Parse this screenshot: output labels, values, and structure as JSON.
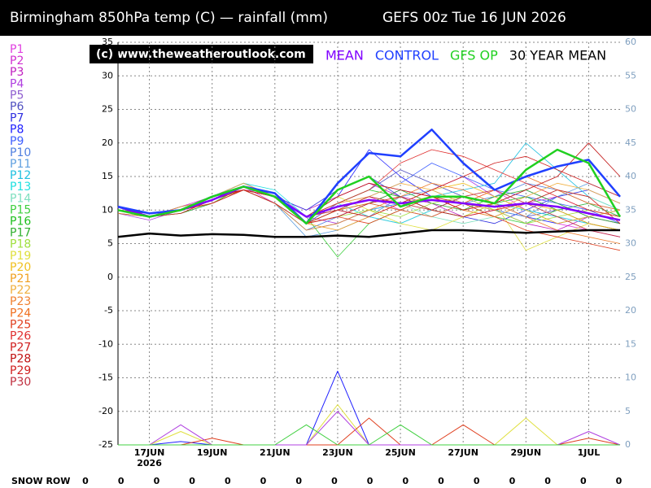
{
  "chart_data": {
    "type": "line",
    "title": "Birmingham 850hPa temp (C) — rainfall (mm)",
    "run": "GEFS 00z Tue 16 JUN 2026",
    "copyright": "(c) www.theweatheroutlook.com",
    "x": [
      0,
      1,
      2,
      3,
      4,
      5,
      6,
      7,
      8,
      9,
      10,
      11,
      12,
      13,
      14,
      15,
      16
    ],
    "xlim": [
      0,
      16
    ],
    "xticks": [
      {
        "value": 1,
        "label": "17JUN"
      },
      {
        "value": 3,
        "label": "19JUN"
      },
      {
        "value": 5,
        "label": "21JUN"
      },
      {
        "value": 7,
        "label": "23JUN"
      },
      {
        "value": 9,
        "label": "25JUN"
      },
      {
        "value": 11,
        "label": "27JUN"
      },
      {
        "value": 13,
        "label": "29JUN"
      },
      {
        "value": 15,
        "label": "1JUL"
      }
    ],
    "xtick_year": "2026",
    "ylim": [
      -25,
      35
    ],
    "yticks": [
      -25,
      -20,
      -15,
      -10,
      -5,
      0,
      5,
      10,
      15,
      20,
      25,
      30,
      35
    ],
    "y2lim": [
      0,
      60
    ],
    "y2ticks": [
      0,
      5,
      10,
      15,
      20,
      25,
      30,
      35,
      40,
      45,
      50,
      55,
      60
    ],
    "grid": true,
    "series": [
      {
        "name": "P1",
        "color": "#e040e0",
        "values": [
          10,
          9,
          10,
          11.5,
          13,
          12,
          9,
          11,
          12,
          10,
          9,
          11,
          13,
          10,
          8,
          7,
          6
        ]
      },
      {
        "name": "P2",
        "color": "#d030d0",
        "values": [
          10.5,
          9,
          10.5,
          12,
          13.5,
          11,
          8,
          9,
          11,
          13,
          12,
          10,
          9,
          11,
          12,
          10,
          9
        ]
      },
      {
        "name": "P3",
        "color": "#c020c0",
        "values": [
          10,
          9.5,
          10,
          11,
          13,
          12,
          10,
          12,
          14,
          12,
          11,
          9,
          10,
          8,
          7,
          9,
          8
        ]
      },
      {
        "name": "P4",
        "color": "#b040e0",
        "values": [
          9.5,
          8.5,
          10,
          12,
          14,
          12,
          9,
          8,
          10,
          11,
          13,
          15,
          12,
          10,
          9,
          8,
          7
        ]
      },
      {
        "name": "P5",
        "color": "#9060d0",
        "values": [
          10,
          9,
          9.5,
          11,
          13,
          12.5,
          9,
          10,
          9,
          8,
          10,
          12,
          11,
          13,
          11,
          9,
          8
        ]
      },
      {
        "name": "P6",
        "color": "#5050c0",
        "values": [
          10.5,
          9.5,
          10,
          12,
          13,
          11,
          8,
          11,
          13,
          16,
          14,
          12,
          11,
          9,
          10,
          11,
          9
        ]
      },
      {
        "name": "P7",
        "color": "#3030e0",
        "values": [
          10,
          9,
          10,
          12,
          14,
          12,
          10,
          13,
          15,
          12,
          10,
          9,
          8,
          10,
          12,
          13,
          11
        ]
      },
      {
        "name": "P8",
        "color": "#2020ff",
        "values": [
          10,
          9,
          10.5,
          11.5,
          13.5,
          12,
          9,
          12,
          19,
          15,
          12,
          11,
          10,
          9,
          8,
          9,
          10
        ]
      },
      {
        "name": "P9",
        "color": "#4060ff",
        "values": [
          9.5,
          9,
          10,
          11,
          13,
          12,
          8,
          10,
          12,
          14,
          17,
          15,
          13,
          12,
          11,
          10,
          8
        ]
      },
      {
        "name": "P10",
        "color": "#5080e0",
        "values": [
          10,
          9.5,
          10,
          12,
          13,
          11,
          7,
          9,
          11,
          10,
          9,
          11,
          12,
          14,
          13,
          11,
          10
        ]
      },
      {
        "name": "P11",
        "color": "#60a0e0",
        "values": [
          10.5,
          9,
          10,
          11.5,
          13,
          11,
          6,
          7,
          9,
          12,
          13,
          11,
          10,
          9,
          12,
          14,
          12
        ]
      },
      {
        "name": "P12",
        "color": "#20c0e0",
        "values": [
          10,
          9,
          10,
          12,
          13,
          11,
          7,
          8,
          10,
          11,
          12,
          13,
          14,
          20,
          16,
          12,
          10
        ]
      },
      {
        "name": "P13",
        "color": "#20e0e0",
        "values": [
          10,
          9.5,
          10,
          12,
          14,
          13,
          9,
          11,
          9,
          8,
          10,
          12,
          11,
          10,
          9,
          8,
          7
        ]
      },
      {
        "name": "P14",
        "color": "#80e0c0",
        "values": [
          10.5,
          9,
          10,
          11,
          13,
          12,
          8,
          10,
          12,
          11,
          9,
          8,
          9,
          11,
          13,
          12,
          10
        ]
      },
      {
        "name": "P15",
        "color": "#40d040",
        "values": [
          10,
          9,
          10,
          12,
          13,
          12,
          9,
          3,
          8,
          10,
          12,
          11,
          9,
          8,
          10,
          11,
          9
        ]
      },
      {
        "name": "P16",
        "color": "#20c020",
        "values": [
          10,
          9,
          9.5,
          11,
          13.5,
          12,
          9,
          11,
          13,
          12,
          10,
          9,
          11,
          12,
          10,
          8,
          7
        ]
      },
      {
        "name": "P17",
        "color": "#30b030",
        "values": [
          9.5,
          9,
          10,
          11.5,
          13,
          12,
          8,
          10,
          11,
          13,
          11,
          10,
          12,
          13,
          11,
          9,
          8
        ]
      },
      {
        "name": "P18",
        "color": "#a0e040",
        "values": [
          10,
          9.5,
          10,
          12,
          13,
          11,
          8,
          9,
          10,
          9,
          11,
          12,
          10,
          8,
          9,
          10,
          9
        ]
      },
      {
        "name": "P19",
        "color": "#e0e040",
        "values": [
          10,
          9,
          10,
          11,
          13,
          12,
          9,
          12,
          10,
          8,
          7,
          9,
          11,
          4,
          6,
          8,
          7
        ]
      },
      {
        "name": "P20",
        "color": "#f0c020",
        "values": [
          10.5,
          9,
          10,
          12,
          13.5,
          12,
          8,
          10,
          12,
          11,
          13,
          14,
          12,
          10,
          8,
          9,
          10
        ]
      },
      {
        "name": "P21",
        "color": "#f0a020",
        "values": [
          10,
          9,
          10.5,
          11.5,
          13,
          12,
          8,
          7,
          9,
          11,
          12,
          10,
          9,
          11,
          10,
          8,
          7
        ]
      },
      {
        "name": "P22",
        "color": "#f0b040",
        "values": [
          10,
          9.5,
          10,
          12,
          14,
          12,
          9,
          11,
          12,
          14,
          13,
          11,
          10,
          12,
          14,
          13,
          11
        ]
      },
      {
        "name": "P23",
        "color": "#f08030",
        "values": [
          10,
          9,
          10,
          11,
          13,
          11,
          7,
          8,
          10,
          12,
          14,
          13,
          11,
          9,
          7,
          6,
          5
        ]
      },
      {
        "name": "P24",
        "color": "#f07020",
        "values": [
          9.5,
          9,
          10,
          12,
          13,
          12,
          9,
          10,
          11,
          10,
          9,
          11,
          13,
          15,
          13,
          11,
          10
        ]
      },
      {
        "name": "P25",
        "color": "#e04020",
        "values": [
          10,
          9,
          10,
          11.5,
          13.5,
          12,
          8,
          9,
          8,
          10,
          12,
          11,
          9,
          7,
          6,
          5,
          4
        ]
      },
      {
        "name": "P26",
        "color": "#e03030",
        "values": [
          10,
          9.5,
          10,
          12,
          13,
          12,
          9,
          11,
          13,
          17,
          19,
          18,
          16,
          14,
          12,
          10,
          9
        ]
      },
      {
        "name": "P27",
        "color": "#d02020",
        "values": [
          10.5,
          9,
          10,
          11,
          13,
          11,
          8,
          10,
          9,
          11,
          13,
          15,
          17,
          18,
          16,
          14,
          12
        ]
      },
      {
        "name": "P28",
        "color": "#c01010",
        "values": [
          10,
          9,
          10,
          12,
          13,
          12,
          9,
          12,
          14,
          13,
          12,
          10,
          11,
          13,
          15,
          20,
          15
        ]
      },
      {
        "name": "P29",
        "color": "#d02020",
        "values": [
          10,
          9,
          9.5,
          11.5,
          13,
          12,
          8,
          9,
          11,
          12,
          10,
          9,
          10,
          11,
          13,
          12,
          8
        ]
      },
      {
        "name": "P30",
        "color": "#c03040",
        "values": [
          10,
          9.5,
          10,
          12,
          13.5,
          12,
          9,
          10,
          12,
          11,
          10,
          12,
          13,
          11,
          9,
          7,
          6
        ]
      },
      {
        "name": "MEAN",
        "color": "#8000ff",
        "bold": true,
        "values": [
          10.5,
          9,
          10,
          11.5,
          13.5,
          12,
          9,
          10.5,
          11.5,
          11,
          11.5,
          11,
          10.5,
          11,
          10.5,
          9.5,
          8.5
        ]
      },
      {
        "name": "CONTROL",
        "color": "#2040ff",
        "bold": true,
        "values": [
          10.5,
          9.5,
          10,
          12,
          13.5,
          12.5,
          8,
          14,
          18.5,
          18,
          22,
          17,
          13,
          15,
          16.5,
          17.5,
          12
        ]
      },
      {
        "name": "GFS OP",
        "color": "#20d020",
        "bold": true,
        "values": [
          10,
          9,
          10,
          12,
          13.5,
          12,
          8,
          13,
          15,
          10.5,
          12,
          12,
          11,
          16,
          19,
          17,
          9
        ]
      },
      {
        "name": "30 YEAR MEAN",
        "color": "#000000",
        "bold": true,
        "values": [
          6,
          6.5,
          6.2,
          6.4,
          6.3,
          6,
          6,
          6.2,
          6,
          6.5,
          7,
          7,
          6.8,
          6.6,
          6.8,
          7,
          7
        ]
      }
    ],
    "rainfall_series": [
      {
        "name": "P8",
        "color": "#2020ff",
        "axis": "y2",
        "values": [
          0,
          0,
          0.5,
          0,
          0,
          0,
          0,
          11,
          0,
          0,
          0,
          0,
          0,
          0,
          0,
          0,
          0
        ]
      },
      {
        "name": "P19",
        "color": "#e0e040",
        "axis": "y2",
        "values": [
          0,
          0,
          2,
          0,
          0,
          0,
          0,
          6,
          0,
          0,
          0,
          0,
          0,
          4,
          0,
          0,
          0
        ]
      },
      {
        "name": "P25",
        "color": "#e04020",
        "axis": "y2",
        "values": [
          0,
          0,
          0,
          1,
          0,
          0,
          0,
          0,
          4,
          0,
          0,
          3,
          0,
          0,
          0,
          1,
          0
        ]
      },
      {
        "name": "P4",
        "color": "#b040e0",
        "axis": "y2",
        "values": [
          0,
          0,
          3,
          0,
          0,
          0,
          0,
          5,
          0,
          0,
          0,
          0,
          0,
          0,
          0,
          2,
          0
        ]
      },
      {
        "name": "P15",
        "color": "#40d040",
        "axis": "y2",
        "values": [
          0,
          0,
          0,
          0,
          0,
          0,
          3,
          0,
          0,
          3,
          0,
          0,
          0,
          0,
          0,
          0,
          0
        ]
      }
    ],
    "snow_row": {
      "label": "SNOW ROW",
      "values": [
        0,
        0,
        0,
        0,
        0,
        0,
        0,
        0,
        0,
        0,
        0,
        0,
        0,
        0,
        0,
        0
      ]
    }
  }
}
